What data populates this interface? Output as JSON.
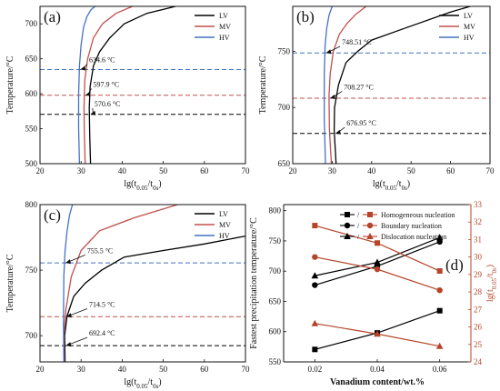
{
  "chart_data": [
    {
      "type": "line",
      "panel_label": "(a)",
      "xlabel": "lg(t0.05/t0s)",
      "ylabel": "Temperature/°C",
      "xlim": [
        20,
        70
      ],
      "ylim": [
        500,
        725
      ],
      "xticks": [
        20,
        30,
        40,
        50,
        60,
        70
      ],
      "yticks": [
        500,
        550,
        600,
        650,
        700
      ],
      "legend_position": "top-right",
      "series": [
        {
          "name": "LV",
          "color": "#000000",
          "x": [
            32.3,
            32.1,
            32.0,
            32.2,
            33.0,
            34.5,
            37.0,
            40.5,
            46.0,
            53.0
          ],
          "y": [
            500,
            540,
            580,
            610,
            640,
            660,
            680,
            700,
            715,
            725
          ]
        },
        {
          "name": "MV",
          "color": "#c0504d",
          "x": [
            31.0,
            30.8,
            30.7,
            30.9,
            31.6,
            33.0,
            35.2,
            38.5,
            42.5
          ],
          "y": [
            500,
            540,
            580,
            620,
            650,
            680,
            700,
            715,
            725
          ]
        },
        {
          "name": "HV",
          "color": "#4472c4",
          "x": [
            29.6,
            29.4,
            29.4,
            29.6,
            30.0,
            30.6,
            31.4,
            32.4,
            33.4
          ],
          "y": [
            500,
            550,
            600,
            640,
            670,
            695,
            710,
            720,
            725
          ]
        }
      ],
      "hlines": [
        {
          "series": "LV",
          "y": 570.6,
          "color": "#000000"
        },
        {
          "series": "MV",
          "y": 597.9,
          "color": "#c0504d"
        },
        {
          "series": "HV",
          "y": 634.6,
          "color": "#4472c4"
        }
      ],
      "annotations": [
        {
          "text": "634.6 °C",
          "y": 634.6,
          "tx": 31.5,
          "ty": 645
        },
        {
          "text": "597.9 °C",
          "y": 597.9,
          "tx": 32.5,
          "ty": 610
        },
        {
          "text": "570.6 °C",
          "y": 570.6,
          "tx": 32.8,
          "ty": 582
        }
      ]
    },
    {
      "type": "line",
      "panel_label": "(b)",
      "xlabel": "lg(t0.05/t0s)",
      "ylabel": "Temperature/°C",
      "xlim": [
        20,
        70
      ],
      "ylim": [
        650,
        790
      ],
      "xticks": [
        20,
        30,
        40,
        50,
        60,
        70
      ],
      "yticks": [
        650,
        700,
        750
      ],
      "legend_position": "top-right",
      "series": [
        {
          "name": "LV",
          "color": "#000000",
          "x": [
            31.0,
            30.5,
            30.6,
            31.6,
            33.5,
            36.5,
            40.0,
            48.0,
            60.0,
            65.0
          ],
          "y": [
            650,
            680,
            700,
            720,
            740,
            750,
            760,
            770,
            785,
            790
          ]
        },
        {
          "name": "MV",
          "color": "#c0504d",
          "x": [
            29.8,
            29.3,
            29.2,
            29.5,
            30.3,
            31.8,
            33.8,
            36.0,
            38.6
          ],
          "y": [
            650,
            680,
            710,
            730,
            750,
            765,
            775,
            783,
            790
          ]
        },
        {
          "name": "HV",
          "color": "#4472c4",
          "x": [
            28.3,
            28.0,
            28.0,
            28.2,
            28.6,
            29.2,
            30.0
          ],
          "y": [
            650,
            690,
            730,
            755,
            770,
            782,
            790
          ]
        }
      ],
      "hlines": [
        {
          "series": "LV",
          "y": 676.95,
          "color": "#000000"
        },
        {
          "series": "MV",
          "y": 708.27,
          "color": "#c0504d"
        },
        {
          "series": "HV",
          "y": 748.51,
          "color": "#4472c4"
        }
      ],
      "annotations": [
        {
          "text": "748.51 °C",
          "y": 748.51,
          "tx": 32.0,
          "ty": 756
        },
        {
          "text": "708.27 °C",
          "y": 708.27,
          "tx": 32.5,
          "ty": 716
        },
        {
          "text": "676.95 °C",
          "y": 676.95,
          "tx": 33.2,
          "ty": 684
        }
      ]
    },
    {
      "type": "line",
      "panel_label": "(c)",
      "xlabel": "lg(t0.05/t0s)",
      "ylabel": "Temperature/°C",
      "xlim": [
        20,
        70
      ],
      "ylim": [
        680,
        800
      ],
      "xticks": [
        20,
        30,
        40,
        50,
        60,
        70
      ],
      "yticks": [
        700,
        750,
        800
      ],
      "legend_position": "top-right",
      "series": [
        {
          "name": "LV",
          "color": "#000000",
          "x": [
            26.1,
            26.0,
            26.6,
            28.2,
            31.0,
            35.0,
            40.5,
            50.0,
            60.0,
            70.0
          ],
          "y": [
            680,
            700,
            715,
            730,
            740,
            750,
            760,
            765,
            770,
            776
          ]
        },
        {
          "name": "MV",
          "color": "#c0504d",
          "x": [
            25.9,
            25.8,
            26.3,
            27.6,
            30.0,
            34.5,
            43.0,
            53.5
          ],
          "y": [
            680,
            700,
            720,
            745,
            765,
            780,
            790,
            800
          ]
        },
        {
          "name": "HV",
          "color": "#4472c4",
          "x": [
            25.8,
            25.7,
            25.8,
            26.1,
            26.6,
            27.2,
            27.9
          ],
          "y": [
            680,
            710,
            745,
            765,
            780,
            792,
            800
          ]
        }
      ],
      "hlines": [
        {
          "series": "LV",
          "y": 692.4,
          "color": "#000000"
        },
        {
          "series": "MV",
          "y": 714.5,
          "color": "#c0504d"
        },
        {
          "series": "HV",
          "y": 755.5,
          "color": "#4472c4"
        }
      ],
      "annotations": [
        {
          "text": "755.5 °C",
          "y": 755.5,
          "tx": 31.0,
          "ty": 763
        },
        {
          "text": "714.5 °C",
          "y": 714.5,
          "tx": 31.5,
          "ty": 722
        },
        {
          "text": "692.4 °C",
          "y": 692.4,
          "tx": 31.5,
          "ty": 700
        }
      ]
    },
    {
      "type": "line",
      "panel_label": "(d)",
      "xlabel": "Vanadium content/wt.%",
      "ylabel": "Fastest precipitation temperature/°C",
      "y2label": "lg(t0.05/t0s)",
      "x": [
        0.02,
        0.04,
        0.06
      ],
      "xticks": [
        "0.02",
        "0.04",
        "0.06"
      ],
      "xlim": [
        0.01,
        0.07
      ],
      "ylim": [
        550,
        810
      ],
      "yticks": [
        550,
        600,
        650,
        700,
        750,
        800
      ],
      "y2lim": [
        24,
        33
      ],
      "y2ticks": [
        24,
        25,
        26,
        27,
        28,
        29,
        30,
        31,
        32,
        33
      ],
      "legend_position": "top-center",
      "legend_separator": "/",
      "left_series": [
        {
          "name": "Homogeneous nucleation",
          "marker": "square",
          "color": "#000000",
          "values": [
            570.6,
            597.9,
            634.6
          ]
        },
        {
          "name": "Boundary nucleation",
          "marker": "circle",
          "color": "#000000",
          "values": [
            676.95,
            708.27,
            748.51
          ]
        },
        {
          "name": "Dislocation nucleation",
          "marker": "triangle",
          "color": "#000000",
          "values": [
            692.4,
            714.5,
            755.5
          ]
        }
      ],
      "right_series": [
        {
          "name": "Homogeneous nucleation",
          "marker": "square",
          "color": "#b5442a",
          "values": [
            31.8,
            30.8,
            29.2
          ]
        },
        {
          "name": "Boundary nucleation",
          "marker": "circle",
          "color": "#b5442a",
          "values": [
            30.0,
            29.3,
            28.1
          ]
        },
        {
          "name": "Dislocation nucleation",
          "marker": "triangle",
          "color": "#b5442a",
          "values": [
            26.2,
            25.6,
            24.9
          ]
        }
      ]
    }
  ]
}
